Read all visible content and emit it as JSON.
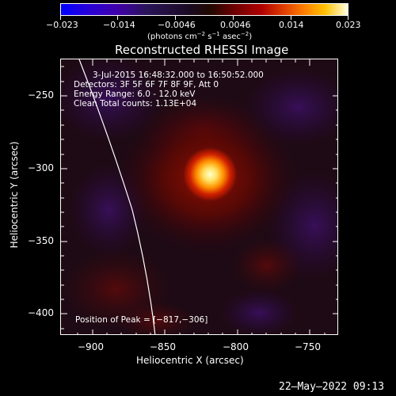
{
  "colorbar": {
    "ticks": [
      "−0.023",
      "−0.014",
      "−0.0046",
      "0.0046",
      "0.014",
      "0.023"
    ],
    "units_main": "(photons cm",
    "units_exp1": "−2",
    "units_mid1": " s",
    "units_exp2": "−1",
    "units_mid2": " asec",
    "units_exp3": "−2",
    "units_end": ")",
    "colors": {
      "low": "#0000ff",
      "mid": "#200800",
      "high": "#ffffe0"
    }
  },
  "plot": {
    "title": "Reconstructed RHESSI Image",
    "info_lines": [
      "3-Jul-2015 16:48:32.000 to 16:50:52.000",
      "Detectors: 3F 5F 6F 7F 8F 9F, Att 0",
      "Energy Range: 6.0 - 12.0 keV",
      "Clean    Total counts: 1.13E+04"
    ],
    "peak_label": "Position of Peak = [−817,−306]",
    "peak_x": -817,
    "peak_y": -306,
    "xlabel": "Heliocentric X (arcsec)",
    "ylabel": "Heliocentric Y (arcsec)",
    "xticks": [
      "−900",
      "−850",
      "−800",
      "−750"
    ],
    "yticks": [
      "−250",
      "−300",
      "−350",
      "−400"
    ],
    "xlim": [
      -920,
      -728
    ],
    "ylim": [
      -417,
      -227
    ]
  },
  "timestamp": "22–May–2022 09:13"
}
